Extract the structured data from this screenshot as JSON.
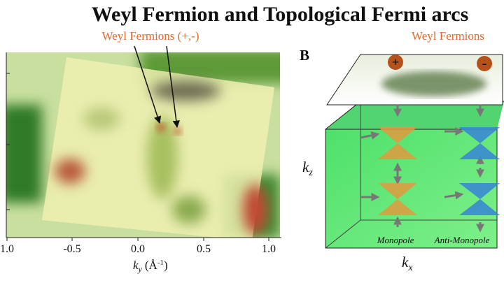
{
  "title": "Weyl Fermion and Topological Fermi arcs",
  "left_panel": {
    "annotation": "Weyl Fermions (+,-)",
    "x_tick_labels": [
      "1.0",
      "-0.5",
      "0.0",
      "0.5",
      "1.0"
    ],
    "x_label": {
      "symbol": "k",
      "subscript": "y",
      "unit": "(Å",
      "superscript": "-1",
      "close": ")"
    }
  },
  "right_panel": {
    "panel_letter": "B",
    "annotation": "Weyl Fermions",
    "plus": "+",
    "minus": "-",
    "z_label": {
      "symbol": "k",
      "subscript": "z"
    },
    "x_label": {
      "symbol": "k",
      "subscript": "x"
    },
    "monopole": "Monopole",
    "anti_monopole": "Anti-Monopole"
  }
}
